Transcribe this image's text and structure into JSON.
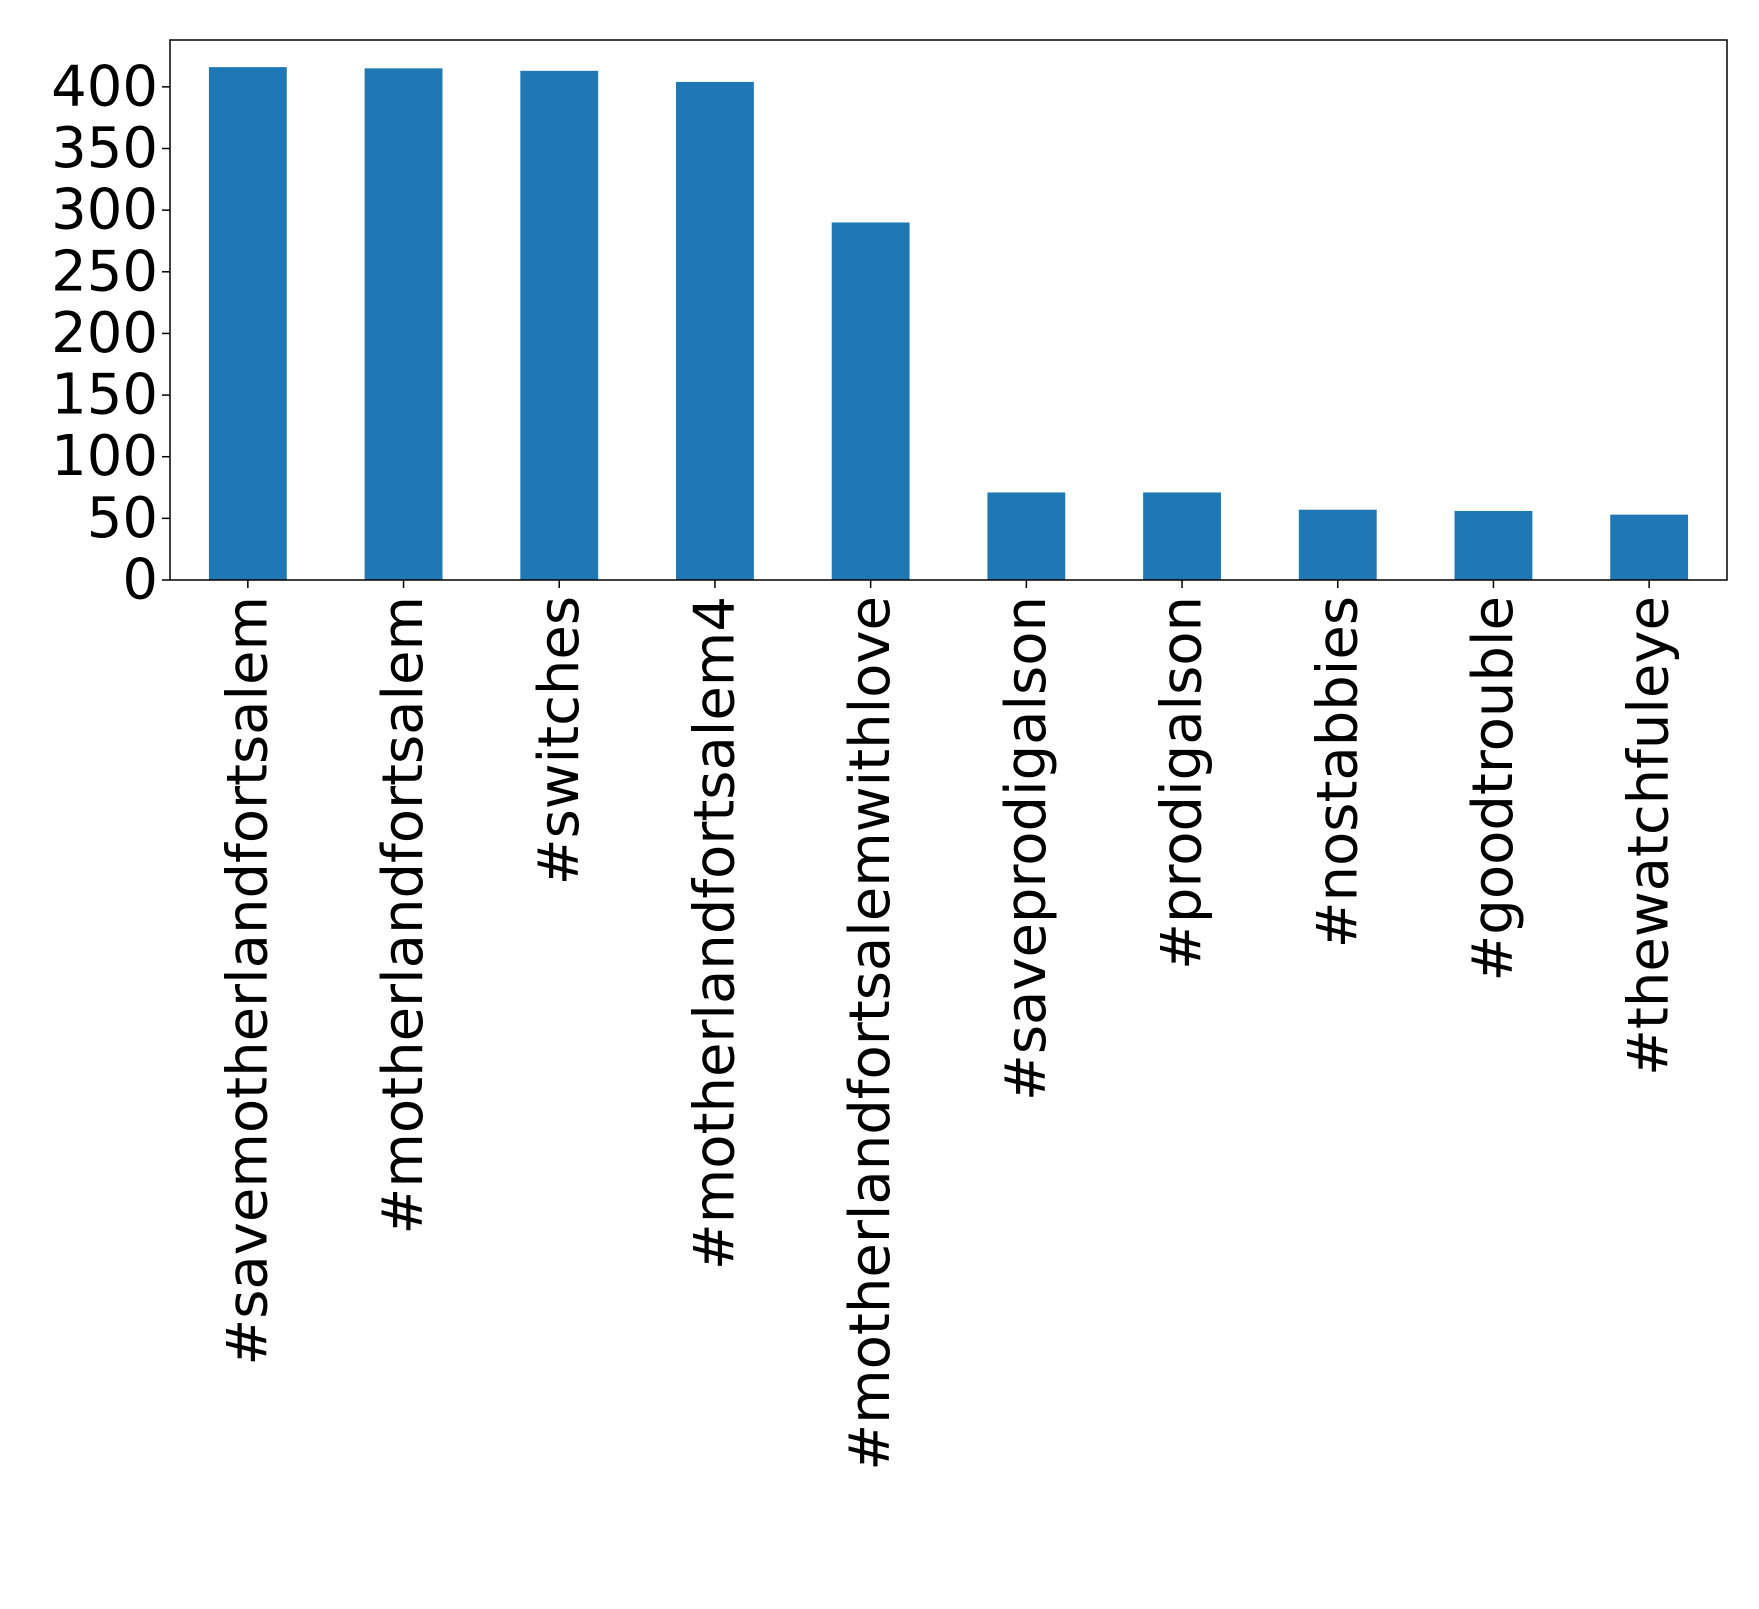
{
  "chart_data": {
    "type": "bar",
    "title": "",
    "xlabel": "",
    "ylabel": "",
    "categories": [
      "#savemotherlandfortsalem",
      "#motherlandfortsalem",
      "#switches",
      "#motherlandfortsalem4",
      "#motherlandfortsalemwithlove",
      "#saveprodigalson",
      "#prodigalson",
      "#nostabbies",
      "#goodtrouble",
      "#thewatchfuleye"
    ],
    "values": [
      416,
      415,
      413,
      404,
      290,
      71,
      71,
      57,
      56,
      53
    ],
    "ylim": [
      0,
      438
    ],
    "yticks": [
      0,
      50,
      100,
      150,
      200,
      250,
      300,
      350,
      400
    ],
    "grid": false,
    "legend": "none",
    "bar_color": "#1f77b4"
  }
}
